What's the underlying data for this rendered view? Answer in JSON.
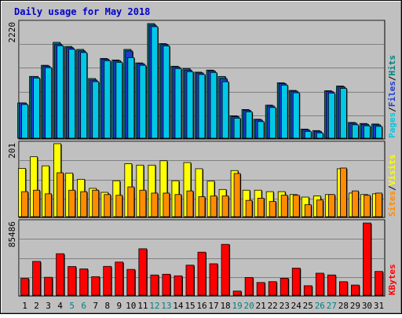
{
  "title": "Daily usage for May 2018",
  "colors": {
    "background": "#c0c0c0",
    "title": "#0000cc",
    "hits": "#008080",
    "files": "#1e3cd2",
    "pages": "#00c8e6",
    "visits": "#ffff00",
    "sites": "#ff8c00",
    "kbytes": "#ff0000",
    "weekend_day": "#008080",
    "weekday": "#000000"
  },
  "chart_data": [
    {
      "type": "bar",
      "panel": "hits-files-pages",
      "y_max_label": "2220",
      "ylim": [
        0,
        2220
      ],
      "legend": [
        "Pages",
        "Files",
        "Hits"
      ],
      "series": [
        {
          "name": "Hits",
          "values": [
            683,
            1196,
            1412,
            1856,
            1777,
            1719,
            1155,
            1545,
            1515,
            1719,
            1458,
            2220,
            1832,
            1394,
            1349,
            1279,
            1319,
            1196,
            434,
            556,
            368,
            640,
            1074,
            926,
            177,
            148,
            919,
            1010,
            305,
            285,
            275
          ]
        },
        {
          "name": "Files",
          "values": [
            683,
            1196,
            1397,
            1821,
            1752,
            1689,
            1125,
            1530,
            1500,
            1689,
            1443,
            2190,
            1817,
            1379,
            1319,
            1264,
            1304,
            1155,
            419,
            541,
            353,
            625,
            1059,
            911,
            162,
            133,
            904,
            995,
            291,
            270,
            260
          ]
        },
        {
          "name": "Pages",
          "values": [
            653,
            1166,
            1367,
            1791,
            1722,
            1659,
            1095,
            1500,
            1470,
            1561,
            1412,
            2160,
            1787,
            1349,
            1289,
            1234,
            1273,
            1094,
            389,
            511,
            323,
            595,
            1029,
            880,
            132,
            103,
            873,
            965,
            260,
            240,
            230
          ]
        }
      ]
    },
    {
      "type": "bar",
      "panel": "visits-sites",
      "y_max_label": "201",
      "ylim": [
        0,
        201
      ],
      "legend": [
        "Sites",
        "Visits"
      ],
      "series": [
        {
          "name": "Visits",
          "values": [
            133,
            165,
            140,
            201,
            120,
            103,
            78,
            67,
            99,
            146,
            142,
            142,
            154,
            99,
            149,
            132,
            98,
            75,
            127,
            73,
            73,
            69,
            69,
            61,
            54,
            57,
            61,
            132,
            65,
            61,
            63
          ]
        },
        {
          "name": "Sites",
          "values": [
            69,
            73,
            63,
            121,
            73,
            69,
            73,
            61,
            59,
            82,
            73,
            65,
            65,
            61,
            71,
            55,
            57,
            57,
            119,
            45,
            51,
            42,
            59,
            59,
            33,
            46,
            61,
            134,
            71,
            59,
            65
          ]
        }
      ]
    },
    {
      "type": "bar",
      "panel": "kbytes",
      "y_max_label": "85486",
      "ylim": [
        0,
        85486
      ],
      "legend": [
        "KBytes"
      ],
      "series": [
        {
          "name": "KBytes",
          "values": [
            19915,
            40021,
            21237,
            49124,
            33959,
            31175,
            21969,
            34134,
            39233,
            30560,
            54954,
            23952,
            24849,
            22949,
            35581,
            50939,
            37219,
            60202,
            4924,
            21016,
            15043,
            16055,
            20077,
            32129,
            11227,
            26065,
            23978,
            16016,
            12027,
            85486,
            28138
          ]
        }
      ]
    }
  ],
  "days": [
    {
      "label": "1",
      "weekend": false
    },
    {
      "label": "2",
      "weekend": false
    },
    {
      "label": "3",
      "weekend": false
    },
    {
      "label": "4",
      "weekend": false
    },
    {
      "label": "5",
      "weekend": true
    },
    {
      "label": "6",
      "weekend": true
    },
    {
      "label": "7",
      "weekend": false
    },
    {
      "label": "8",
      "weekend": false
    },
    {
      "label": "9",
      "weekend": false
    },
    {
      "label": "10",
      "weekend": false
    },
    {
      "label": "11",
      "weekend": false
    },
    {
      "label": "12",
      "weekend": true
    },
    {
      "label": "13",
      "weekend": true
    },
    {
      "label": "14",
      "weekend": false
    },
    {
      "label": "15",
      "weekend": false
    },
    {
      "label": "16",
      "weekend": false
    },
    {
      "label": "17",
      "weekend": false
    },
    {
      "label": "18",
      "weekend": false
    },
    {
      "label": "19",
      "weekend": true
    },
    {
      "label": "20",
      "weekend": true
    },
    {
      "label": "21",
      "weekend": false
    },
    {
      "label": "22",
      "weekend": false
    },
    {
      "label": "23",
      "weekend": false
    },
    {
      "label": "24",
      "weekend": false
    },
    {
      "label": "25",
      "weekend": false
    },
    {
      "label": "26",
      "weekend": true
    },
    {
      "label": "27",
      "weekend": true
    },
    {
      "label": "28",
      "weekend": false
    },
    {
      "label": "29",
      "weekend": false
    },
    {
      "label": "30",
      "weekend": false
    },
    {
      "label": "31",
      "weekend": false
    }
  ]
}
